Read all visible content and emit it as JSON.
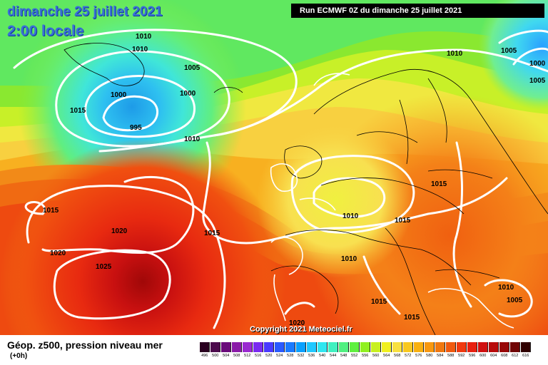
{
  "header": {
    "date_line": "dimanche 25 juillet 2021",
    "time_line": "2:00 locale",
    "run_label": "Run ECMWF 0Z du dimanche 25 juillet 2021"
  },
  "copyright": "Copyright 2021 Meteociel.fr",
  "legend": {
    "title": "Géop. z500, pression niveau mer",
    "subtitle": "(+0h)",
    "scale": [
      {
        "value": "496",
        "color": "#2a0020"
      },
      {
        "value": "500",
        "color": "#4d0a4d"
      },
      {
        "value": "504",
        "color": "#6a0a7a"
      },
      {
        "value": "508",
        "color": "#8a1ba8"
      },
      {
        "value": "512",
        "color": "#9a2ad0"
      },
      {
        "value": "516",
        "color": "#7a2af0"
      },
      {
        "value": "520",
        "color": "#4a3aff"
      },
      {
        "value": "524",
        "color": "#2a5aff"
      },
      {
        "value": "528",
        "color": "#1a7aff"
      },
      {
        "value": "532",
        "color": "#0aa0ff"
      },
      {
        "value": "536",
        "color": "#20c8ff"
      },
      {
        "value": "540",
        "color": "#30e6f0"
      },
      {
        "value": "544",
        "color": "#40f0c0"
      },
      {
        "value": "548",
        "color": "#50f080"
      },
      {
        "value": "552",
        "color": "#60f040"
      },
      {
        "value": "556",
        "color": "#90f020"
      },
      {
        "value": "560",
        "color": "#c8f020"
      },
      {
        "value": "564",
        "color": "#f0f020"
      },
      {
        "value": "568",
        "color": "#f8e040"
      },
      {
        "value": "572",
        "color": "#f8c820"
      },
      {
        "value": "576",
        "color": "#f8b010"
      },
      {
        "value": "580",
        "color": "#f89810"
      },
      {
        "value": "584",
        "color": "#f07810"
      },
      {
        "value": "588",
        "color": "#f05a10"
      },
      {
        "value": "592",
        "color": "#f03a10"
      },
      {
        "value": "596",
        "color": "#e82010"
      },
      {
        "value": "600",
        "color": "#d01010"
      },
      {
        "value": "604",
        "color": "#b80a0a"
      },
      {
        "value": "608",
        "color": "#980808"
      },
      {
        "value": "612",
        "color": "#700505"
      },
      {
        "value": "616",
        "color": "#300000"
      }
    ]
  },
  "pressure_labels": [
    {
      "text": "1010"
    },
    {
      "text": "1010"
    },
    {
      "text": "1005"
    },
    {
      "text": "1000"
    },
    {
      "text": "1000"
    },
    {
      "text": "1015"
    },
    {
      "text": "995"
    },
    {
      "text": "1010"
    },
    {
      "text": "1010"
    },
    {
      "text": "1005"
    },
    {
      "text": "1000"
    },
    {
      "text": "1005"
    },
    {
      "text": "1015"
    },
    {
      "text": "1015"
    },
    {
      "text": "1020"
    },
    {
      "text": "1015"
    },
    {
      "text": "1010"
    },
    {
      "text": "1015"
    },
    {
      "text": "1020"
    },
    {
      "text": "1025"
    },
    {
      "text": "1010"
    },
    {
      "text": "1010"
    },
    {
      "text": "1005"
    },
    {
      "text": "1015"
    },
    {
      "text": "1015"
    },
    {
      "text": "1020"
    }
  ]
}
